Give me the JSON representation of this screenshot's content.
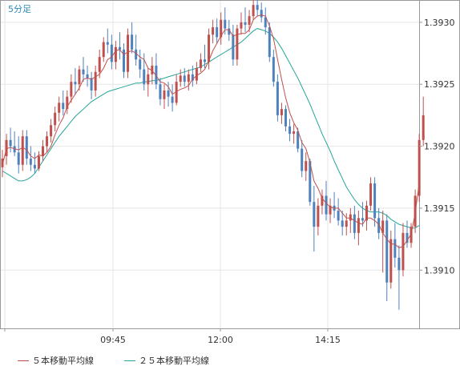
{
  "header": {
    "timeframe": "5分足"
  },
  "colors": {
    "up": "#c0504d",
    "down": "#4f81bd",
    "ma5": "#c0504d",
    "ma25": "#26a69a",
    "grid": "#e5e5e5",
    "axis": "#999999"
  },
  "legend": {
    "ma5_label": "５本移動平均線",
    "ma25_label": "２５本移動平均線"
  },
  "chart_data": {
    "type": "candlestick",
    "x_ticks": [
      "09:45",
      "12:00",
      "14:15"
    ],
    "y_ticks": [
      "1.3930",
      "1.3925",
      "1.3920",
      "1.3915",
      "1.3910"
    ],
    "ylim": [
      1.39053,
      1.39318
    ],
    "grid": true,
    "candles": [
      [
        1.39183,
        1.39197,
        1.39175,
        1.3919
      ],
      [
        1.39192,
        1.3921,
        1.39185,
        1.39205
      ],
      [
        1.39205,
        1.39215,
        1.39195,
        1.392
      ],
      [
        1.392,
        1.39212,
        1.39192,
        1.39195
      ],
      [
        1.39195,
        1.39208,
        1.39178,
        1.39185
      ],
      [
        1.39185,
        1.39213,
        1.3918,
        1.39208
      ],
      [
        1.39208,
        1.39213,
        1.39185,
        1.3919
      ],
      [
        1.3919,
        1.392,
        1.3918,
        1.39185
      ],
      [
        1.39185,
        1.39195,
        1.39178,
        1.39182
      ],
      [
        1.39182,
        1.39196,
        1.3918,
        1.39192
      ],
      [
        1.39192,
        1.39205,
        1.39188,
        1.392
      ],
      [
        1.392,
        1.39212,
        1.39195,
        1.39208
      ],
      [
        1.39208,
        1.39222,
        1.39203,
        1.39217
      ],
      [
        1.39217,
        1.39232,
        1.39212,
        1.39227
      ],
      [
        1.39227,
        1.3924,
        1.3922,
        1.39235
      ],
      [
        1.39235,
        1.39245,
        1.39225,
        1.3923
      ],
      [
        1.3923,
        1.39245,
        1.39226,
        1.3924
      ],
      [
        1.3924,
        1.39258,
        1.39235,
        1.39252
      ],
      [
        1.39252,
        1.39263,
        1.39242,
        1.3925
      ],
      [
        1.3925,
        1.39265,
        1.39245,
        1.39262
      ],
      [
        1.39262,
        1.39272,
        1.39252,
        1.39258
      ],
      [
        1.39258,
        1.39265,
        1.39248,
        1.39255
      ],
      [
        1.39255,
        1.3926,
        1.39238,
        1.39245
      ],
      [
        1.39245,
        1.39265,
        1.3924,
        1.3926
      ],
      [
        1.3926,
        1.39278,
        1.39255,
        1.39272
      ],
      [
        1.39272,
        1.39288,
        1.39268,
        1.39284
      ],
      [
        1.39284,
        1.39295,
        1.39275,
        1.39282
      ],
      [
        1.39282,
        1.3929,
        1.39262,
        1.39268
      ],
      [
        1.39268,
        1.39285,
        1.39262,
        1.3928
      ],
      [
        1.3928,
        1.39292,
        1.3927,
        1.39278
      ],
      [
        1.39278,
        1.39283,
        1.39255,
        1.3926
      ],
      [
        1.3926,
        1.39295,
        1.39255,
        1.3929
      ],
      [
        1.3929,
        1.393,
        1.39275,
        1.39278
      ],
      [
        1.39278,
        1.3929,
        1.39265,
        1.3927
      ],
      [
        1.3927,
        1.39278,
        1.39255,
        1.39262
      ],
      [
        1.39262,
        1.39275,
        1.39245,
        1.3925
      ],
      [
        1.3925,
        1.39263,
        1.3924,
        1.39258
      ],
      [
        1.39258,
        1.39272,
        1.3925,
        1.39265
      ],
      [
        1.39265,
        1.39275,
        1.39246,
        1.3925
      ],
      [
        1.3925,
        1.39255,
        1.39233,
        1.39238
      ],
      [
        1.39238,
        1.3925,
        1.3923,
        1.39245
      ],
      [
        1.39245,
        1.39252,
        1.39232,
        1.3924
      ],
      [
        1.3924,
        1.3925,
        1.39228,
        1.39235
      ],
      [
        1.39235,
        1.39258,
        1.39233,
        1.39252
      ],
      [
        1.39252,
        1.39262,
        1.39248,
        1.39257
      ],
      [
        1.39257,
        1.39263,
        1.39248,
        1.39252
      ],
      [
        1.39252,
        1.39262,
        1.39245,
        1.39258
      ],
      [
        1.39258,
        1.39265,
        1.39248,
        1.39253
      ],
      [
        1.39253,
        1.39268,
        1.3925,
        1.39263
      ],
      [
        1.39263,
        1.39275,
        1.3926,
        1.3927
      ],
      [
        1.3927,
        1.39282,
        1.39263,
        1.39268
      ],
      [
        1.39268,
        1.39295,
        1.39262,
        1.3929
      ],
      [
        1.3929,
        1.39302,
        1.39283,
        1.39296
      ],
      [
        1.39296,
        1.39303,
        1.39283,
        1.39288
      ],
      [
        1.39288,
        1.39308,
        1.39282,
        1.39302
      ],
      [
        1.39302,
        1.39312,
        1.3929,
        1.39295
      ],
      [
        1.39295,
        1.39302,
        1.39285,
        1.3929
      ],
      [
        1.3929,
        1.39298,
        1.39265,
        1.3927
      ],
      [
        1.3927,
        1.39298,
        1.39265,
        1.39295
      ],
      [
        1.39295,
        1.39308,
        1.3929,
        1.393
      ],
      [
        1.393,
        1.39312,
        1.39292,
        1.39298
      ],
      [
        1.39298,
        1.3931,
        1.39292,
        1.39305
      ],
      [
        1.39305,
        1.39318,
        1.39302,
        1.39314
      ],
      [
        1.39314,
        1.39322,
        1.39305,
        1.3931
      ],
      [
        1.3931,
        1.39316,
        1.393,
        1.39304
      ],
      [
        1.39304,
        1.39312,
        1.3929,
        1.39296
      ],
      [
        1.39296,
        1.393,
        1.39268,
        1.39272
      ],
      [
        1.39272,
        1.39278,
        1.39248,
        1.39252
      ],
      [
        1.39252,
        1.39258,
        1.3922,
        1.39225
      ],
      [
        1.39225,
        1.39235,
        1.39218,
        1.3923
      ],
      [
        1.3923,
        1.39233,
        1.39212,
        1.39216
      ],
      [
        1.39216,
        1.39222,
        1.39204,
        1.3921
      ],
      [
        1.3921,
        1.39218,
        1.39202,
        1.39212
      ],
      [
        1.39212,
        1.39215,
        1.39195,
        1.39198
      ],
      [
        1.39198,
        1.39205,
        1.39175,
        1.3918
      ],
      [
        1.3918,
        1.39195,
        1.39172,
        1.39188
      ],
      [
        1.39188,
        1.3919,
        1.39152,
        1.39155
      ],
      [
        1.39155,
        1.39168,
        1.39115,
        1.39135
      ],
      [
        1.39135,
        1.39158,
        1.39128,
        1.39152
      ],
      [
        1.39152,
        1.39165,
        1.39145,
        1.3916
      ],
      [
        1.3916,
        1.39172,
        1.3914,
        1.39145
      ],
      [
        1.39145,
        1.39158,
        1.39138,
        1.39152
      ],
      [
        1.39152,
        1.39163,
        1.39142,
        1.39148
      ],
      [
        1.39148,
        1.39158,
        1.39136,
        1.3914
      ],
      [
        1.3914,
        1.39148,
        1.39128,
        1.39135
      ],
      [
        1.39135,
        1.39146,
        1.39128,
        1.3914
      ],
      [
        1.3914,
        1.3915,
        1.3913,
        1.39145
      ],
      [
        1.39145,
        1.39152,
        1.39125,
        1.3913
      ],
      [
        1.3913,
        1.39148,
        1.3912,
        1.39142
      ],
      [
        1.39142,
        1.39155,
        1.39135,
        1.3914
      ],
      [
        1.3914,
        1.39156,
        1.39132,
        1.39152
      ],
      [
        1.39152,
        1.39175,
        1.39148,
        1.3917
      ],
      [
        1.3917,
        1.39175,
        1.39135,
        1.39142
      ],
      [
        1.39142,
        1.3915,
        1.39125,
        1.3913
      ],
      [
        1.3913,
        1.39148,
        1.39098,
        1.3914
      ],
      [
        1.3914,
        1.39145,
        1.39075,
        1.3909
      ],
      [
        1.3909,
        1.39132,
        1.39085,
        1.39125
      ],
      [
        1.39125,
        1.39138,
        1.39102,
        1.3911
      ],
      [
        1.3911,
        1.3912,
        1.39068,
        1.391
      ],
      [
        1.391,
        1.39138,
        1.39095,
        1.3913
      ],
      [
        1.3913,
        1.3914,
        1.39118,
        1.39122
      ],
      [
        1.39122,
        1.39138,
        1.39118,
        1.39135
      ],
      [
        1.39135,
        1.39165,
        1.3913,
        1.3916
      ],
      [
        1.3916,
        1.3921,
        1.39155,
        1.39205
      ],
      [
        1.39205,
        1.3924,
        1.392,
        1.39225
      ]
    ],
    "ma5": [
      1.39185,
      1.39198,
      1.39199,
      1.39198,
      1.39197,
      1.39199,
      1.39197,
      1.39192,
      1.3919,
      1.39193,
      1.39192,
      1.39195,
      1.392,
      1.39209,
      1.39217,
      1.39223,
      1.39232,
      1.39237,
      1.39242,
      1.39247,
      1.39254,
      1.39255,
      1.39254,
      1.39256,
      1.39258,
      1.39263,
      1.3927,
      1.39272,
      1.39277,
      1.39278,
      1.39274,
      1.39276,
      1.39277,
      1.39275,
      1.39272,
      1.3927,
      1.39263,
      1.39261,
      1.39257,
      1.39252,
      1.39251,
      1.39248,
      1.39242,
      1.39244,
      1.39246,
      1.39247,
      1.39249,
      1.39254,
      1.39257,
      1.39259,
      1.39262,
      1.39269,
      1.39277,
      1.39283,
      1.39289,
      1.39294,
      1.39294,
      1.39289,
      1.3929,
      1.39291,
      1.39291,
      1.39294,
      1.39302,
      1.39305,
      1.39306,
      1.39305,
      1.39297,
      1.39287,
      1.3927,
      1.39254,
      1.39239,
      1.39227,
      1.39219,
      1.39213,
      1.39203,
      1.39198,
      1.39187,
      1.39172,
      1.39166,
      1.39158,
      1.39154,
      1.39151,
      1.3915,
      1.3915,
      1.39146,
      1.39142,
      1.39142,
      1.3914,
      1.39138,
      1.39137,
      1.39142,
      1.39142,
      1.3914,
      1.39137,
      1.3913,
      1.39125,
      1.39121,
      1.39121,
      1.39118,
      1.39119,
      1.39124,
      1.39129,
      1.39146,
      1.3917
    ],
    "ma25": [
      1.3918,
      1.39178,
      1.39176,
      1.39174,
      1.39172,
      1.39172,
      1.39173,
      1.39175,
      1.39178,
      1.39183,
      1.39188,
      1.39193,
      1.39198,
      1.39203,
      1.39208,
      1.39212,
      1.39216,
      1.3922,
      1.39224,
      1.39227,
      1.3923,
      1.39233,
      1.39236,
      1.39238,
      1.3924,
      1.39242,
      1.39244,
      1.39245,
      1.39246,
      1.39247,
      1.39248,
      1.39249,
      1.3925,
      1.39251,
      1.39251,
      1.39252,
      1.39252,
      1.39253,
      1.39253,
      1.39254,
      1.39255,
      1.39256,
      1.39257,
      1.39258,
      1.39259,
      1.3926,
      1.39261,
      1.39262,
      1.39263,
      1.39264,
      1.39266,
      1.39268,
      1.3927,
      1.39272,
      1.39274,
      1.39276,
      1.39278,
      1.3928,
      1.39282,
      1.39284,
      1.39287,
      1.3929,
      1.39293,
      1.39295,
      1.39294,
      1.39293,
      1.39291,
      1.39288,
      1.39284,
      1.39279,
      1.39273,
      1.39267,
      1.39261,
      1.39255,
      1.39248,
      1.39241,
      1.39234,
      1.39226,
      1.39218,
      1.3921,
      1.39203,
      1.39196,
      1.39188,
      1.39181,
      1.39174,
      1.39167,
      1.39162,
      1.39157,
      1.39153,
      1.3915,
      1.39148,
      1.39147,
      1.39147,
      1.39147,
      1.39146,
      1.39144,
      1.39141,
      1.39139,
      1.39137,
      1.39136,
      1.39135,
      1.39134,
      1.39134,
      1.39136
    ]
  }
}
